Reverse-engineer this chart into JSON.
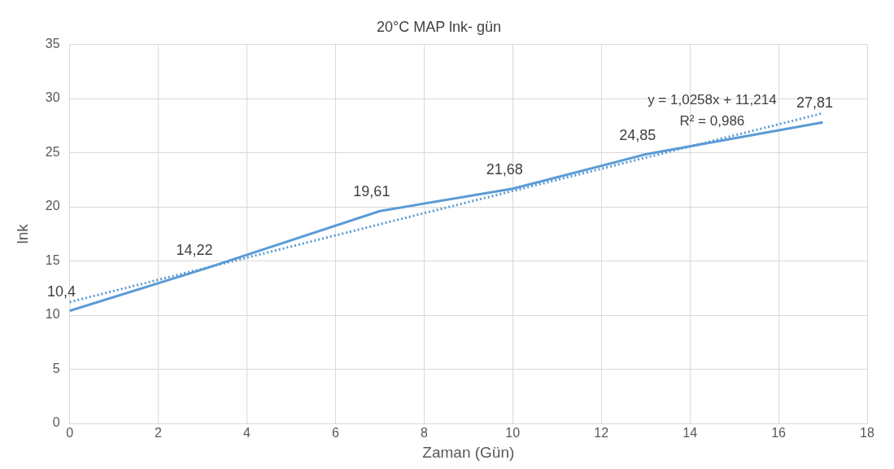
{
  "chart_data": {
    "type": "line",
    "title": "20°C MAP lnk- gün",
    "xlabel": "Zaman (Gün)",
    "ylabel": "lnk",
    "x": [
      0,
      3,
      7,
      10,
      13,
      17
    ],
    "series": [
      {
        "color": "#5b9bd5",
        "values": [
          10.4,
          14.22,
          19.61,
          21.68,
          24.85,
          27.81
        ],
        "value_labels": [
          "10,4",
          "14,22",
          "19,61",
          "21,68",
          "24,85",
          "27,81"
        ]
      },
      {
        "type": "line",
        "color": "#5b9bd5",
        "line_style": "dotted",
        "x": [
          0,
          17
        ],
        "values": [
          11.21,
          28.65
        ]
      }
    ],
    "xlim": [
      0,
      18
    ],
    "xticks": [
      0,
      2,
      4,
      6,
      8,
      10,
      12,
      14,
      16,
      18
    ],
    "ylim": [
      0,
      35
    ],
    "yticks": [
      0,
      5,
      10,
      15,
      20,
      25,
      30,
      35
    ],
    "grid": true,
    "marker": "none",
    "legend": false,
    "line_style": "solid",
    "annotations": [
      "y = 1,0258x + 11,214",
      "R² = 0,986"
    ]
  }
}
